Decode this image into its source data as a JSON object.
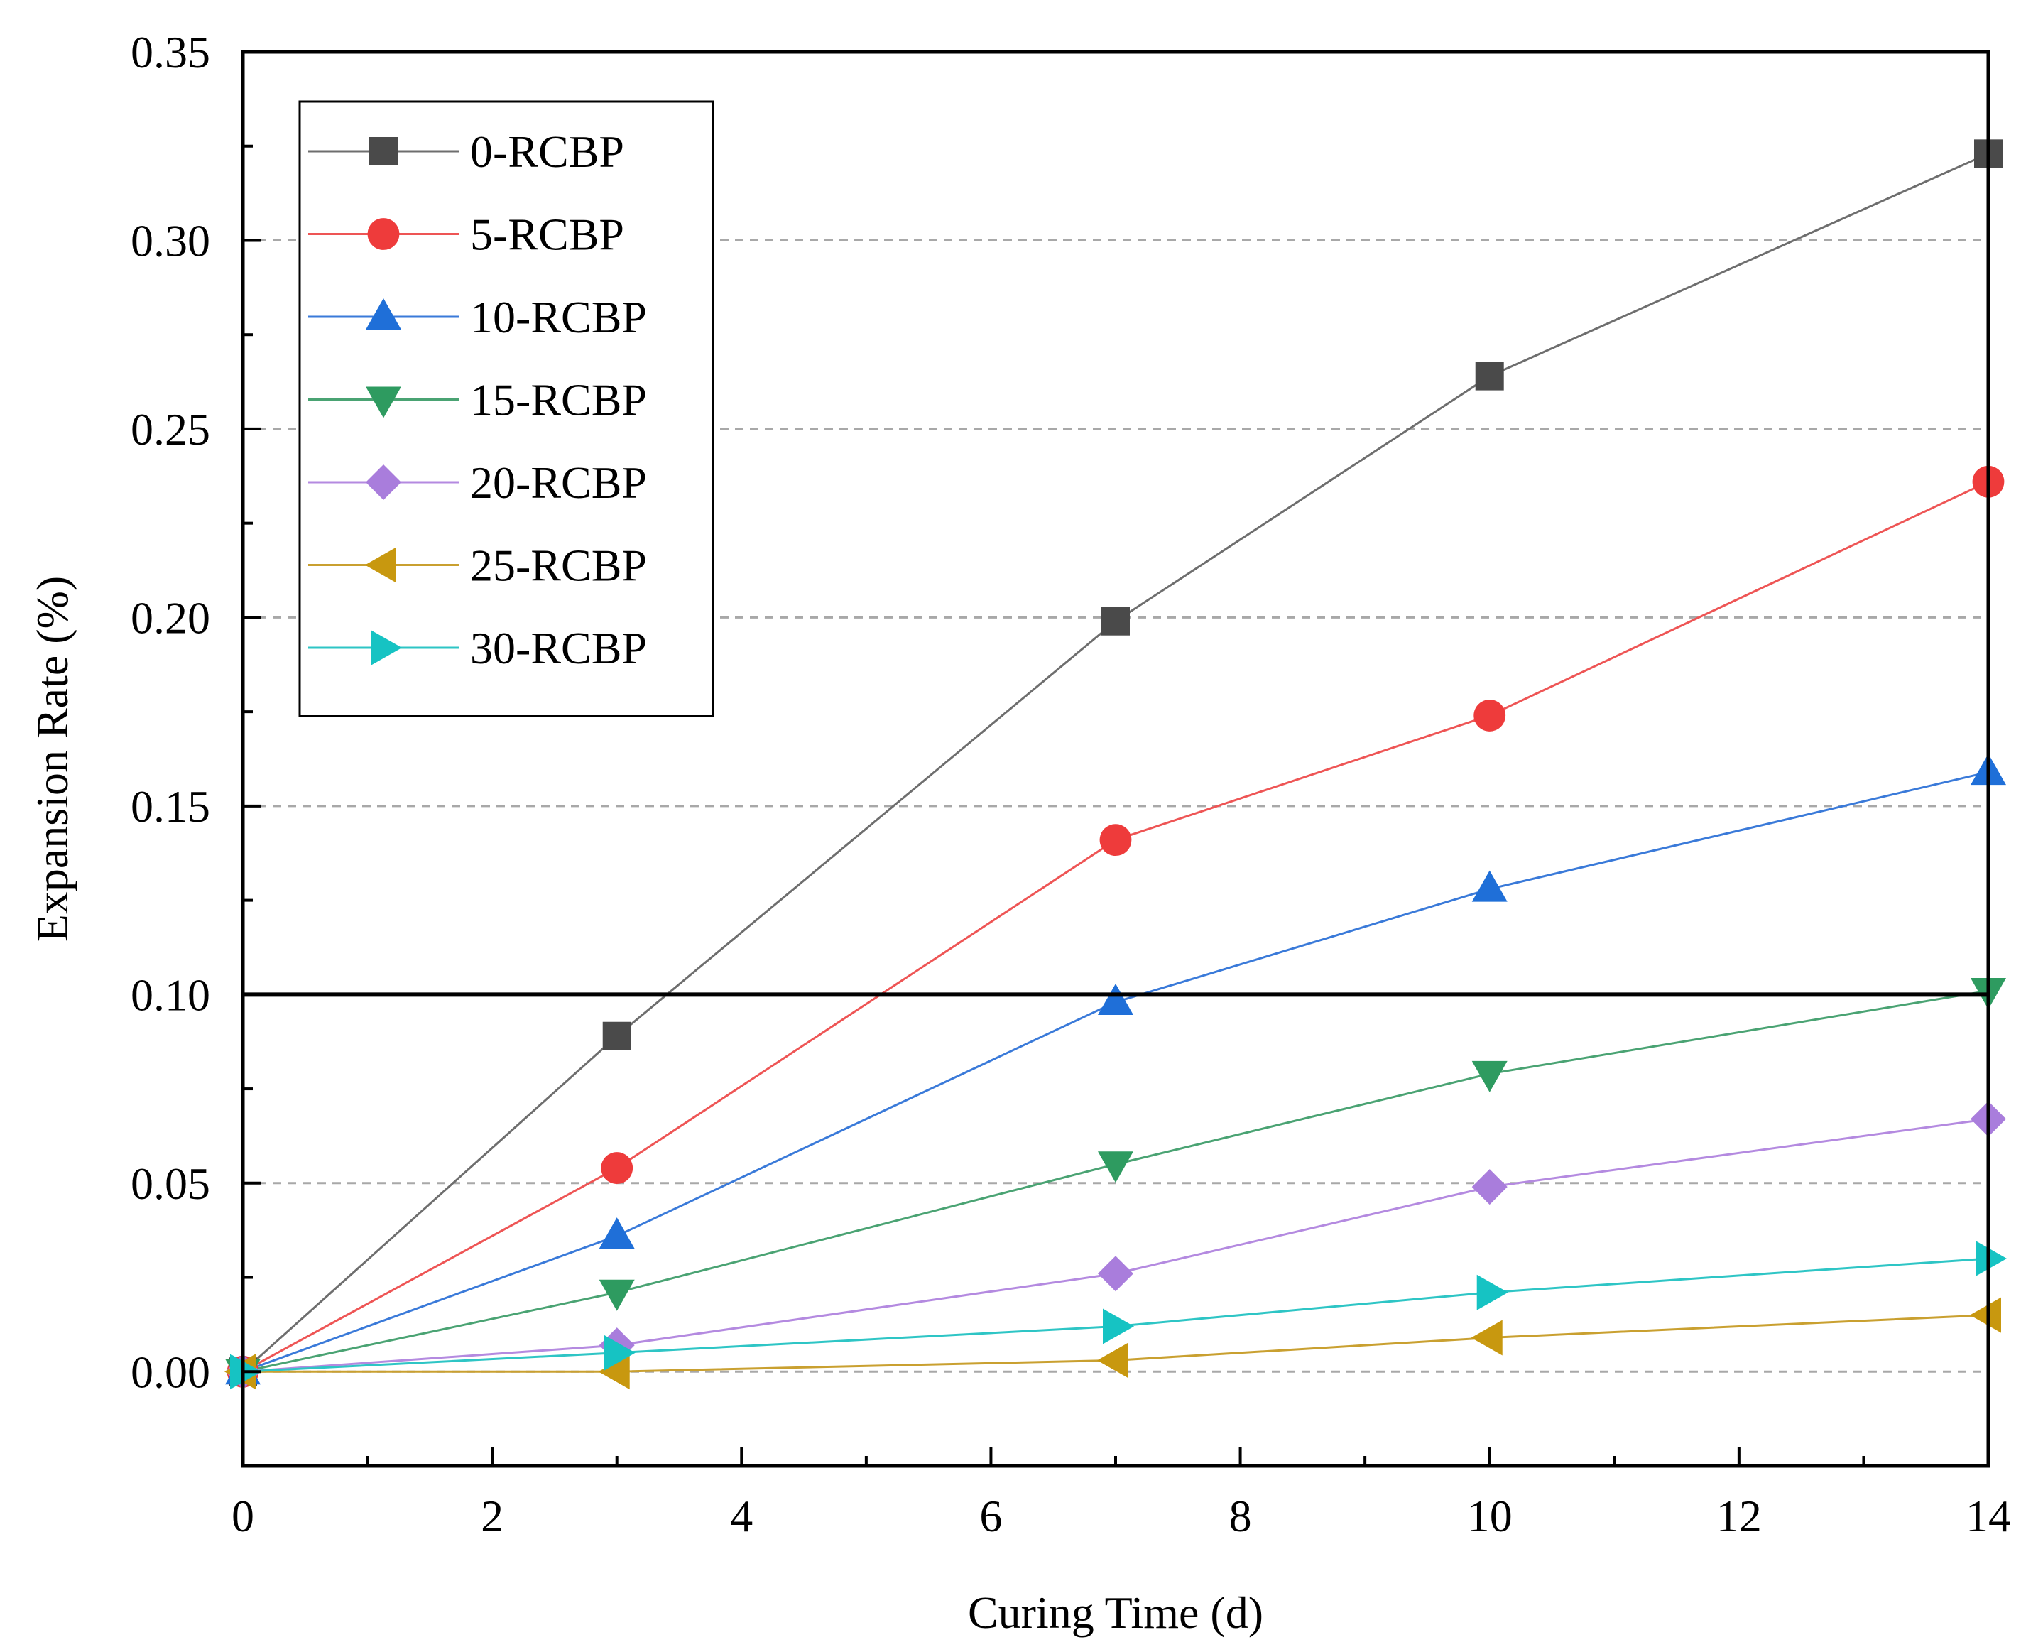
{
  "chart_data": {
    "type": "line",
    "title": "",
    "xlabel": "Curing Time (d)",
    "ylabel": "Expansion Rate (%)",
    "xlim": [
      0,
      14
    ],
    "ylim": [
      -0.025,
      0.35
    ],
    "x_ticks": [
      0,
      2,
      4,
      6,
      8,
      10,
      12,
      14
    ],
    "x_tick_labels": [
      "0",
      "2",
      "4",
      "6",
      "8",
      "10",
      "12",
      "14"
    ],
    "y_ticks": [
      0.0,
      0.05,
      0.1,
      0.15,
      0.2,
      0.25,
      0.3,
      0.35
    ],
    "y_tick_labels": [
      "0.00",
      "0.05",
      "0.10",
      "0.15",
      "0.20",
      "0.25",
      "0.30",
      "0.35"
    ],
    "grid": "horizontal dashed at 0.00, 0.05, 0.15, 0.20, 0.25, 0.30",
    "reference_line": {
      "y": 0.1,
      "color": "#000000"
    },
    "legend_position": "top-left",
    "x": [
      0,
      3,
      7,
      10,
      14
    ],
    "series": [
      {
        "name": "0-RCBP",
        "marker": "square",
        "color": "#4a4a4a",
        "line_color": "#6e6e6e",
        "values": [
          0,
          0.089,
          0.199,
          0.264,
          0.323
        ]
      },
      {
        "name": "5-RCBP",
        "marker": "circle",
        "color": "#ee3b3b",
        "line_color": "#ee5555",
        "values": [
          0,
          0.054,
          0.141,
          0.174,
          0.236
        ]
      },
      {
        "name": "10-RCBP",
        "marker": "triangle-up",
        "color": "#1f6fd8",
        "line_color": "#3a7ad9",
        "values": [
          0,
          0.036,
          0.098,
          0.128,
          0.159
        ]
      },
      {
        "name": "15-RCBP",
        "marker": "triangle-down",
        "color": "#2e9b60",
        "line_color": "#4aa373",
        "values": [
          0,
          0.021,
          0.055,
          0.079,
          0.101
        ]
      },
      {
        "name": "20-RCBP",
        "marker": "diamond",
        "color": "#a97ddc",
        "line_color": "#b48ae0",
        "values": [
          0,
          0.007,
          0.026,
          0.049,
          0.067
        ]
      },
      {
        "name": "25-RCBP",
        "marker": "triangle-left",
        "color": "#c8980f",
        "line_color": "#c9a030",
        "values": [
          0,
          0.0,
          0.003,
          0.009,
          0.015
        ]
      },
      {
        "name": "30-RCBP",
        "marker": "triangle-right",
        "color": "#16c3c3",
        "line_color": "#2ec5c5",
        "values": [
          0,
          0.005,
          0.012,
          0.021,
          0.03
        ]
      }
    ]
  }
}
